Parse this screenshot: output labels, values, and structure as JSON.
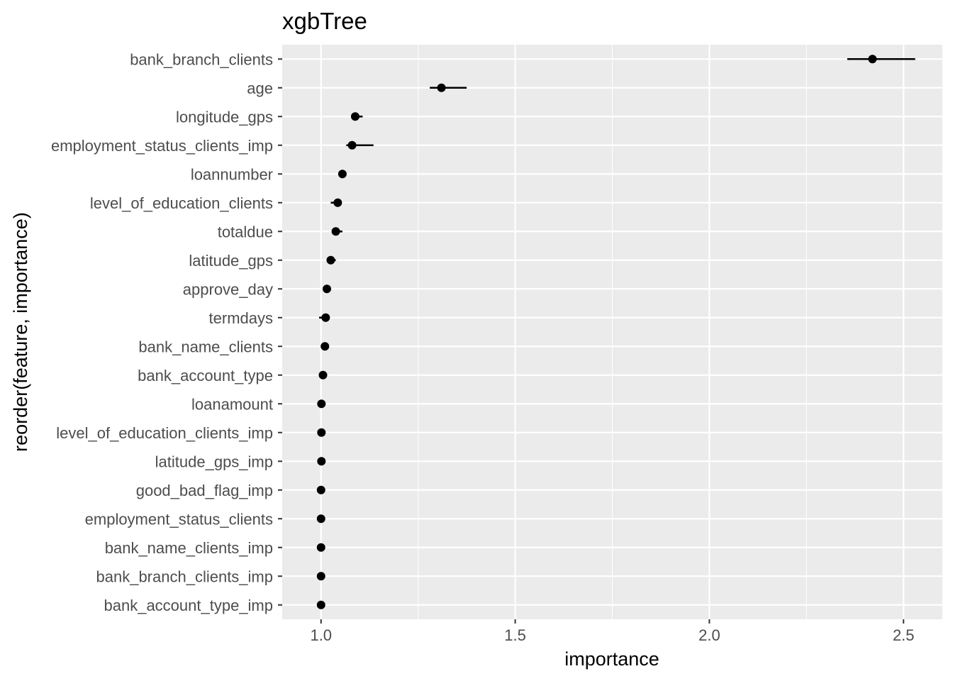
{
  "chart_data": {
    "type": "scatter",
    "title": "xgbTree",
    "xlabel": "importance",
    "ylabel": "reorder(feature, importance)",
    "xlim": [
      0.9,
      2.6
    ],
    "xticks": [
      1.0,
      1.5,
      2.0,
      2.5
    ],
    "xtick_labels": [
      "1.0",
      "1.5",
      "2.0",
      "2.5"
    ],
    "grid": true,
    "background": "#ebebeb",
    "gridline_color": "#ffffff",
    "point_color": "#000000",
    "series": [
      {
        "points": [
          {
            "feature": "bank_branch_clients",
            "importance": 2.42,
            "lower": 2.355,
            "upper": 2.53
          },
          {
            "feature": "age",
            "importance": 1.31,
            "lower": 1.28,
            "upper": 1.375
          },
          {
            "feature": "longitude_gps",
            "importance": 1.088,
            "lower": 1.08,
            "upper": 1.107
          },
          {
            "feature": "employment_status_clients_imp",
            "importance": 1.08,
            "lower": 1.065,
            "upper": 1.135
          },
          {
            "feature": "loannumber",
            "importance": 1.055,
            "lower": 1.05,
            "upper": 1.06
          },
          {
            "feature": "level_of_education_clients",
            "importance": 1.043,
            "lower": 1.025,
            "upper": 1.05
          },
          {
            "feature": "totaldue",
            "importance": 1.038,
            "lower": 1.03,
            "upper": 1.055
          },
          {
            "feature": "latitude_gps",
            "importance": 1.025,
            "lower": 1.015,
            "upper": 1.038
          },
          {
            "feature": "approve_day",
            "importance": 1.015,
            "lower": 1.01,
            "upper": 1.02
          },
          {
            "feature": "termdays",
            "importance": 1.012,
            "lower": 0.995,
            "upper": 1.02
          },
          {
            "feature": "bank_name_clients",
            "importance": 1.01,
            "lower": 1.007,
            "upper": 1.013
          },
          {
            "feature": "bank_account_type",
            "importance": 1.005,
            "lower": 1.003,
            "upper": 1.007
          },
          {
            "feature": "loanamount",
            "importance": 1.001,
            "lower": 1.0,
            "upper": 1.002
          },
          {
            "feature": "level_of_education_clients_imp",
            "importance": 1.001,
            "lower": 1.0,
            "upper": 1.002
          },
          {
            "feature": "latitude_gps_imp",
            "importance": 1.001,
            "lower": 1.0,
            "upper": 1.002
          },
          {
            "feature": "good_bad_flag_imp",
            "importance": 1.0,
            "lower": 1.0,
            "upper": 1.0
          },
          {
            "feature": "employment_status_clients",
            "importance": 1.0,
            "lower": 1.0,
            "upper": 1.0
          },
          {
            "feature": "bank_name_clients_imp",
            "importance": 1.0,
            "lower": 1.0,
            "upper": 1.0
          },
          {
            "feature": "bank_branch_clients_imp",
            "importance": 1.0,
            "lower": 1.0,
            "upper": 1.0
          },
          {
            "feature": "bank_account_type_imp",
            "importance": 1.0,
            "lower": 1.0,
            "upper": 1.0
          }
        ]
      }
    ]
  }
}
